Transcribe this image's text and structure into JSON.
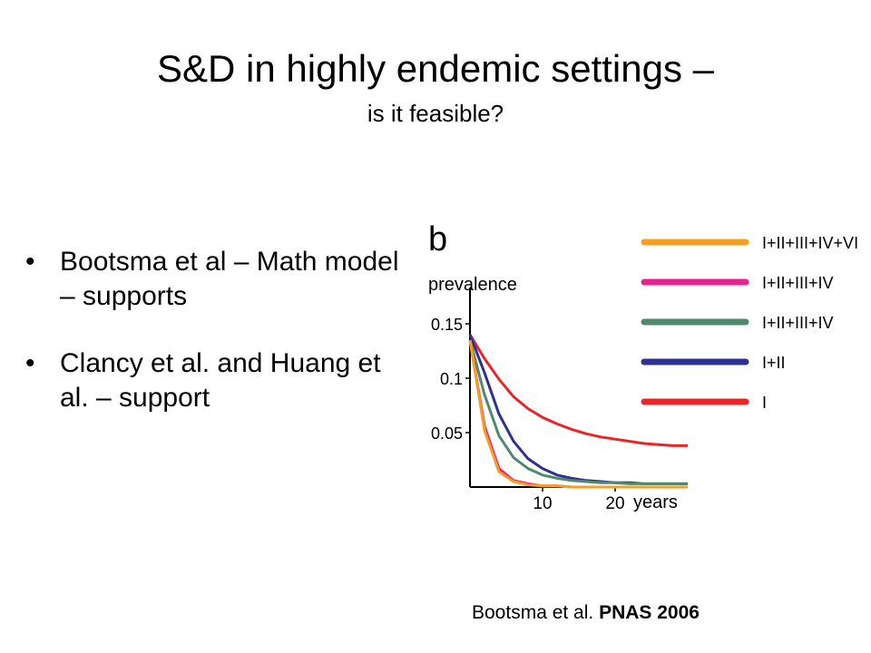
{
  "slide": {
    "title": "S&D in highly endemic settings –",
    "subtitle": "is it feasible?",
    "bullets": [
      "Bootsma et al – Math model – supports",
      "Clancy et al. and Huang et al. – support"
    ],
    "bullet_glyph": "•",
    "citation_plain": "Bootsma et al. ",
    "citation_bold": "PNAS 2006"
  },
  "chart_data": {
    "type": "line",
    "panel_label": "b",
    "title": "",
    "xlabel": "years",
    "ylabel": "prevalence",
    "xlim": [
      0,
      30
    ],
    "ylim": [
      0,
      0.175
    ],
    "x_ticks": [
      10,
      20
    ],
    "y_ticks": [
      0.05,
      0.1,
      0.15
    ],
    "x_tick_labels": [
      "10",
      "20"
    ],
    "y_tick_labels": [
      "0.05",
      "0.1",
      "0.15"
    ],
    "grid": false,
    "legend_position": "top-right",
    "x": [
      0,
      2,
      4,
      6,
      8,
      10,
      12,
      14,
      16,
      18,
      20,
      22,
      24,
      26,
      28,
      30
    ],
    "series": [
      {
        "name": "I+II+III+IV+VI",
        "color": "#f7a020",
        "values": [
          0.135,
          0.052,
          0.014,
          0.005,
          0.002,
          0.001,
          0.001,
          0,
          0,
          0,
          0,
          0,
          0,
          0,
          0,
          0
        ]
      },
      {
        "name": "I+II+III+IV",
        "color": "#e8238e",
        "values": [
          0.135,
          0.056,
          0.017,
          0.006,
          0.003,
          0.001,
          0.001,
          0,
          0,
          0,
          0,
          0,
          0,
          0,
          0,
          0
        ]
      },
      {
        "name": "I+II+III+IV",
        "color": "#4f8a6d",
        "values": [
          0.135,
          0.085,
          0.047,
          0.027,
          0.017,
          0.011,
          0.008,
          0.006,
          0.005,
          0.004,
          0.004,
          0.003,
          0.003,
          0.003,
          0.003,
          0.003
        ]
      },
      {
        "name": "I+II",
        "color": "#2e3192",
        "values": [
          0.14,
          0.105,
          0.067,
          0.042,
          0.026,
          0.017,
          0.011,
          0.008,
          0.006,
          0.005,
          0.004,
          0.004,
          0.003,
          0.003,
          0.003,
          0.003
        ]
      },
      {
        "name": "I",
        "color": "#e8262a",
        "values": [
          0.14,
          0.118,
          0.099,
          0.083,
          0.072,
          0.064,
          0.058,
          0.053,
          0.049,
          0.046,
          0.044,
          0.042,
          0.04,
          0.039,
          0.038,
          0.038
        ]
      }
    ]
  }
}
